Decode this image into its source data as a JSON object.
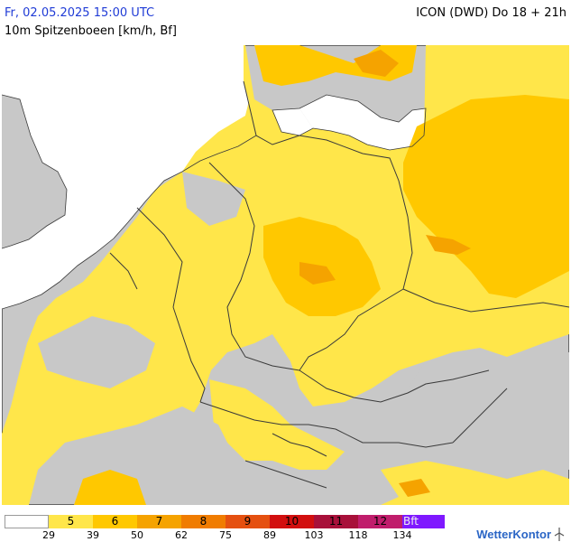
{
  "header": {
    "date": "Fr, 02.05.2025 15:00 UTC",
    "model": "ICON (DWD) Do 18 + 21h",
    "parameter": "10m Spitzenboeen [km/h, Bf]"
  },
  "legend": {
    "bins": [
      {
        "label": "",
        "color": "#ffffff"
      },
      {
        "label": "5",
        "color": "#ffe64a"
      },
      {
        "label": "6",
        "color": "#ffc800"
      },
      {
        "label": "7",
        "color": "#f5a300"
      },
      {
        "label": "8",
        "color": "#f07c00"
      },
      {
        "label": "9",
        "color": "#e55010"
      },
      {
        "label": "10",
        "color": "#d20f0f"
      },
      {
        "label": "11",
        "color": "#a8103a"
      },
      {
        "label": "12",
        "color": "#c01d6c"
      },
      {
        "label": "Bft",
        "color": "#7f18ff"
      }
    ],
    "ticks": [
      "29",
      "39",
      "50",
      "62",
      "75",
      "89",
      "103",
      "118",
      "134"
    ]
  },
  "branding": {
    "name": "WetterKontor",
    "logo_icon": "wind-turbine-icon"
  },
  "colors": {
    "sea": "#ffffff",
    "below_threshold_land": "#c8c8c8",
    "border": "#3a3a3a"
  }
}
